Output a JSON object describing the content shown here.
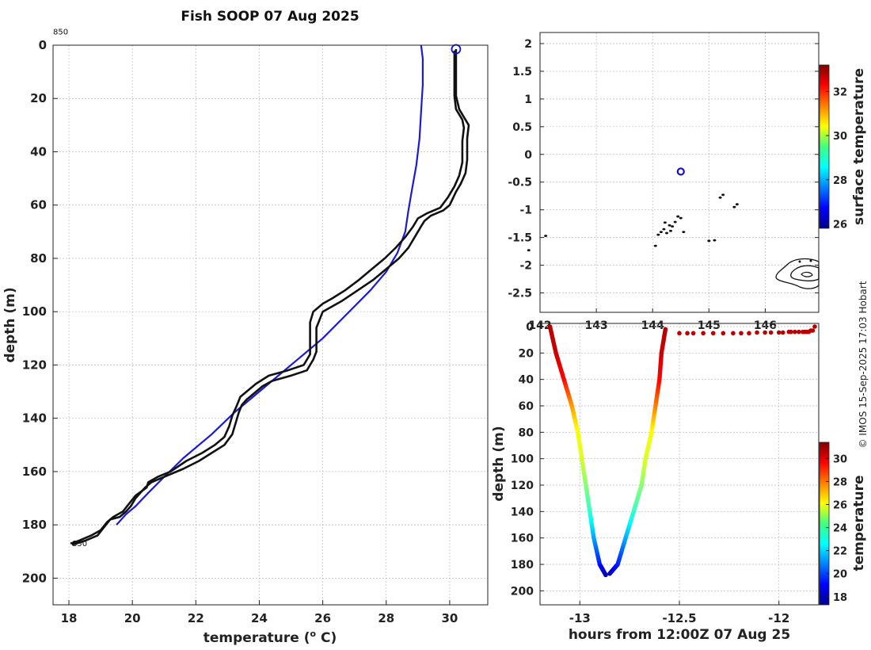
{
  "chart_data": [
    {
      "type": "line",
      "title": "Fish SOOP 07 Aug 2025",
      "xlabel": "temperature (",
      "xlabel_sup": "o",
      "xlabel_unit": " C)",
      "ylabel": "depth (m)",
      "xlim": [
        17.5,
        31.2
      ],
      "ylim": [
        0,
        210
      ],
      "y_reversed": true,
      "xticks": [
        18,
        20,
        22,
        24,
        26,
        28,
        30
      ],
      "yticks": [
        0,
        20,
        40,
        60,
        80,
        100,
        120,
        140,
        160,
        180,
        200
      ],
      "grid": true,
      "annotations": [
        {
          "text": "850",
          "x": 17.5,
          "y": -4
        },
        {
          "text": "850",
          "x": 18.1,
          "y": 188
        }
      ],
      "marker": {
        "x": 30.2,
        "y": 1.5,
        "color": "#1010d0"
      },
      "series": [
        {
          "color": "#1a1ad8",
          "width": 2.2,
          "points": [
            [
              29.1,
              0
            ],
            [
              29.15,
              5
            ],
            [
              29.15,
              15
            ],
            [
              29.1,
              25
            ],
            [
              29.05,
              35
            ],
            [
              28.95,
              45
            ],
            [
              28.8,
              55
            ],
            [
              28.7,
              62
            ],
            [
              28.6,
              70
            ],
            [
              28.35,
              78
            ],
            [
              28.0,
              85
            ],
            [
              27.5,
              92
            ],
            [
              27.0,
              98
            ],
            [
              26.5,
              104
            ],
            [
              26.0,
              110
            ],
            [
              25.2,
              118
            ],
            [
              24.6,
              124
            ],
            [
              24.0,
              130
            ],
            [
              23.2,
              138
            ],
            [
              22.5,
              146
            ],
            [
              21.6,
              155
            ],
            [
              21.0,
              162
            ],
            [
              20.5,
              168
            ],
            [
              20.1,
              173
            ],
            [
              19.8,
              176
            ],
            [
              19.5,
              180
            ]
          ]
        },
        {
          "color": "#111111",
          "width": 2.6,
          "points": [
            [
              30.2,
              1.5
            ],
            [
              30.2,
              5
            ],
            [
              30.2,
              10
            ],
            [
              30.2,
              19
            ],
            [
              30.3,
              24
            ],
            [
              30.45,
              27
            ],
            [
              30.6,
              30
            ],
            [
              30.55,
              35
            ],
            [
              30.55,
              43
            ],
            [
              30.5,
              48
            ],
            [
              30.35,
              52
            ],
            [
              30.2,
              55
            ],
            [
              30.0,
              60
            ],
            [
              29.8,
              62
            ],
            [
              29.4,
              64
            ],
            [
              29.2,
              66
            ],
            [
              29.1,
              68
            ],
            [
              28.9,
              72
            ],
            [
              28.7,
              76
            ],
            [
              28.4,
              80
            ],
            [
              28.0,
              84
            ],
            [
              27.6,
              88
            ],
            [
              27.1,
              92
            ],
            [
              26.6,
              96
            ],
            [
              26.3,
              98
            ],
            [
              26.0,
              100
            ],
            [
              25.9,
              103
            ],
            [
              25.8,
              106
            ],
            [
              25.8,
              110
            ],
            [
              25.8,
              115
            ],
            [
              25.7,
              118
            ],
            [
              25.5,
              122
            ],
            [
              25.0,
              124
            ],
            [
              24.4,
              126
            ],
            [
              24.1,
              128
            ],
            [
              23.8,
              131
            ],
            [
              23.6,
              133
            ],
            [
              23.45,
              135
            ],
            [
              23.35,
              138
            ],
            [
              23.25,
              142
            ],
            [
              23.15,
              146
            ],
            [
              22.9,
              150
            ],
            [
              22.5,
              153
            ],
            [
              22.1,
              156
            ],
            [
              21.6,
              159
            ],
            [
              21.0,
              162
            ],
            [
              20.6,
              164
            ],
            [
              20.4,
              166
            ],
            [
              20.1,
              170
            ],
            [
              19.95,
              173
            ],
            [
              19.8,
              175
            ],
            [
              19.6,
              177
            ],
            [
              19.3,
              178
            ],
            [
              19.1,
              181
            ],
            [
              18.9,
              184
            ],
            [
              18.5,
              186
            ],
            [
              18.1,
              187.5
            ]
          ]
        },
        {
          "color": "#111111",
          "width": 2.6,
          "points": [
            [
              30.15,
              2
            ],
            [
              30.15,
              6
            ],
            [
              30.15,
              12
            ],
            [
              30.15,
              19
            ],
            [
              30.2,
              24
            ],
            [
              30.4,
              28
            ],
            [
              30.45,
              31
            ],
            [
              30.4,
              36
            ],
            [
              30.4,
              44
            ],
            [
              30.3,
              49
            ],
            [
              30.15,
              53
            ],
            [
              29.95,
              57
            ],
            [
              29.7,
              61
            ],
            [
              29.3,
              63
            ],
            [
              29.0,
              65
            ],
            [
              28.85,
              68
            ],
            [
              28.6,
              72
            ],
            [
              28.3,
              76
            ],
            [
              27.95,
              80
            ],
            [
              27.55,
              84
            ],
            [
              27.15,
              88
            ],
            [
              26.7,
              92
            ],
            [
              26.3,
              95
            ],
            [
              26.0,
              97
            ],
            [
              25.7,
              100
            ],
            [
              25.6,
              104
            ],
            [
              25.6,
              110
            ],
            [
              25.6,
              116
            ],
            [
              25.4,
              120
            ],
            [
              24.9,
              122
            ],
            [
              24.3,
              124
            ],
            [
              23.9,
              127
            ],
            [
              23.6,
              130
            ],
            [
              23.4,
              132
            ],
            [
              23.3,
              135
            ],
            [
              23.15,
              139
            ],
            [
              23.05,
              143
            ],
            [
              22.9,
              147
            ],
            [
              22.6,
              150
            ],
            [
              22.2,
              153
            ],
            [
              21.7,
              156
            ],
            [
              21.2,
              160
            ],
            [
              20.8,
              162
            ],
            [
              20.5,
              164
            ],
            [
              20.45,
              166
            ],
            [
              20.1,
              169
            ],
            [
              19.9,
              172
            ],
            [
              19.7,
              175
            ],
            [
              19.4,
              177
            ],
            [
              19.2,
              179
            ],
            [
              19.0,
              182
            ],
            [
              18.7,
              184
            ],
            [
              18.3,
              186
            ],
            [
              18.05,
              187
            ]
          ]
        }
      ]
    },
    {
      "type": "scatter",
      "xlim": [
        142.0,
        146.95
      ],
      "ylim": [
        -2.85,
        2.2
      ],
      "xticks": [
        142,
        143,
        144,
        145,
        146
      ],
      "yticks": [
        2,
        1.5,
        1,
        0.5,
        0,
        -0.5,
        -1,
        -1.5,
        -2,
        -2.5
      ],
      "ytick_labels": [
        "2",
        "1.5",
        "1",
        "0.5",
        "0",
        "-0.5",
        "-1",
        "-1.5",
        "-2",
        "-2.5"
      ],
      "xtick_labels": [
        "142",
        "143",
        "144",
        "145",
        "146"
      ],
      "grid": true,
      "marker": {
        "x": 144.5,
        "y": -0.31,
        "color": "#1010d0"
      },
      "islands": [
        [
          141.8,
          -1.73
        ],
        [
          142.1,
          -1.47
        ],
        [
          144.05,
          -1.65
        ],
        [
          144.1,
          -1.45
        ],
        [
          144.15,
          -1.4
        ],
        [
          144.2,
          -1.35
        ],
        [
          144.25,
          -1.42
        ],
        [
          144.3,
          -1.28
        ],
        [
          144.35,
          -1.3
        ],
        [
          144.4,
          -1.22
        ],
        [
          144.45,
          -1.12
        ],
        [
          144.5,
          -1.15
        ],
        [
          144.55,
          -1.4
        ],
        [
          144.22,
          -1.23
        ],
        [
          144.32,
          -1.38
        ],
        [
          145.0,
          -1.56
        ],
        [
          145.1,
          -1.55
        ],
        [
          145.25,
          -0.73
        ],
        [
          145.2,
          -0.78
        ],
        [
          145.45,
          -0.95
        ],
        [
          145.5,
          -0.9
        ]
      ],
      "colorbar": {
        "label": "surface temperature",
        "range": [
          25.8,
          33.2
        ],
        "ticks": [
          26,
          28,
          30,
          32
        ]
      }
    },
    {
      "type": "scatter",
      "xlabel": "hours from 12:00Z 07 Aug 25",
      "ylabel": "depth (m)",
      "xlim": [
        -13.2,
        -11.8
      ],
      "ylim": [
        0,
        210
      ],
      "y_reversed": true,
      "xticks": [
        -13,
        -12.5,
        -12
      ],
      "yticks": [
        0,
        20,
        40,
        60,
        80,
        100,
        120,
        140,
        160,
        180,
        200
      ],
      "grid": true,
      "profile": {
        "down": [
          [
            -13.15,
            0
          ],
          [
            -13.12,
            20
          ],
          [
            -13.08,
            40
          ],
          [
            -13.04,
            60
          ],
          [
            -13.01,
            80
          ],
          [
            -12.99,
            100
          ],
          [
            -12.97,
            120
          ],
          [
            -12.95,
            140
          ],
          [
            -12.93,
            160
          ],
          [
            -12.9,
            180
          ],
          [
            -12.87,
            188
          ]
        ],
        "up": [
          [
            -12.85,
            187
          ],
          [
            -12.81,
            180
          ],
          [
            -12.77,
            160
          ],
          [
            -12.73,
            140
          ],
          [
            -12.69,
            120
          ],
          [
            -12.67,
            100
          ],
          [
            -12.64,
            80
          ],
          [
            -12.62,
            60
          ],
          [
            -12.6,
            40
          ],
          [
            -12.59,
            20
          ],
          [
            -12.57,
            2
          ]
        ],
        "temperature_down": [
          30.6,
          30.4,
          29.6,
          27.5,
          26.0,
          25.6,
          24.5,
          23.3,
          21.4,
          19.4,
          18.1
        ],
        "temperature_up": [
          18.1,
          19.4,
          21.4,
          23.3,
          24.5,
          25.6,
          26.0,
          27.8,
          29.6,
          30.3,
          30.6
        ]
      },
      "surface_points": {
        "x": [
          -12.5,
          -12.46,
          -12.43,
          -12.38,
          -12.33,
          -12.28,
          -12.23,
          -12.19,
          -12.15,
          -12.11,
          -12.07,
          -12.04,
          -12.0,
          -11.98,
          -11.95,
          -11.94,
          -11.92,
          -11.9,
          -11.88,
          -11.87,
          -11.86,
          -11.85,
          -11.84,
          -11.83,
          -11.82
        ],
        "y": [
          5,
          5,
          5,
          5,
          5,
          5,
          5,
          5,
          5,
          4.5,
          4.5,
          4.5,
          4.5,
          4.5,
          4,
          4,
          4,
          4,
          4,
          4,
          4,
          4,
          3,
          3,
          0
        ],
        "temperature": 30.6
      },
      "colorbar": {
        "label": "temperature",
        "range": [
          17.3,
          31.4
        ],
        "ticks": [
          18,
          20,
          22,
          24,
          26,
          28,
          30
        ]
      }
    }
  ],
  "credit": "© IMOS 15-Sep-2025 17:03 Hobart"
}
